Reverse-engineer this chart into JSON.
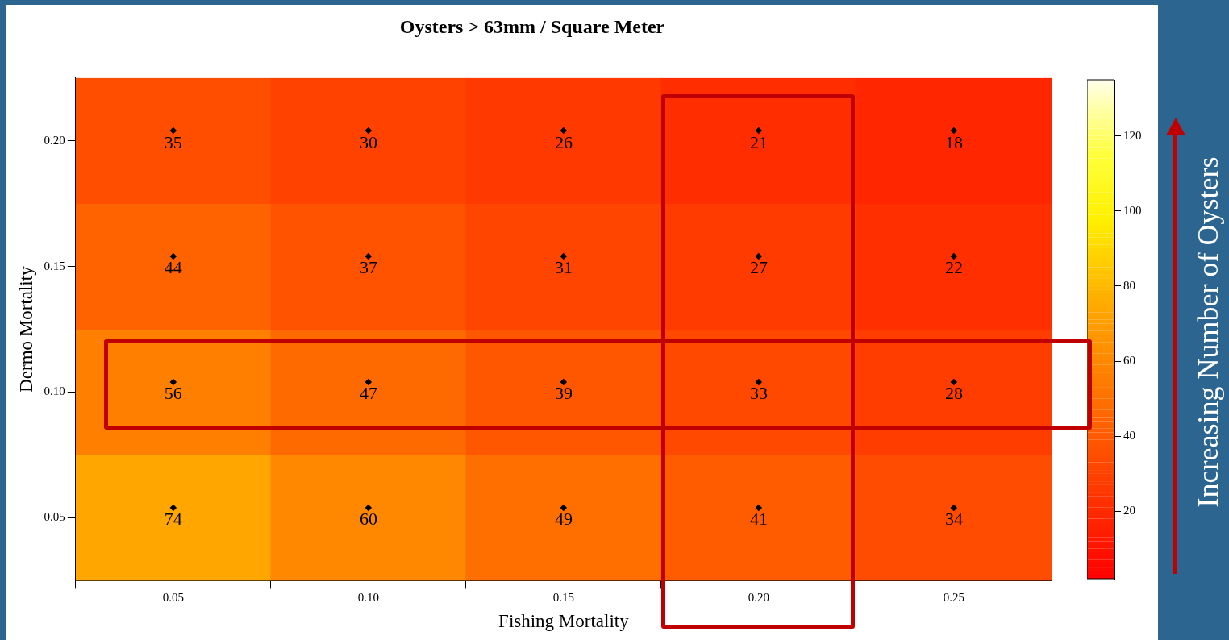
{
  "chart_data": {
    "type": "heatmap",
    "title": "Oysters > 63mm / Square Meter",
    "xlabel": "Fishing Mortality",
    "ylabel": "Dermo Mortality",
    "categories": [
      "0.05",
      "0.10",
      "0.15",
      "0.20",
      "0.25"
    ],
    "y_categories": [
      "0.20",
      "0.15",
      "0.10",
      "0.05"
    ],
    "cells": [
      [
        35,
        30,
        26,
        21,
        18
      ],
      [
        44,
        37,
        31,
        27,
        22
      ],
      [
        56,
        47,
        39,
        33,
        28
      ],
      [
        74,
        60,
        49,
        41,
        34
      ]
    ],
    "data_labels": true,
    "clim": [
      2,
      135
    ],
    "cticks": [
      20,
      40,
      60,
      80,
      100,
      120
    ],
    "annotations": [
      "Increasing Number of Oysters"
    ]
  }
}
